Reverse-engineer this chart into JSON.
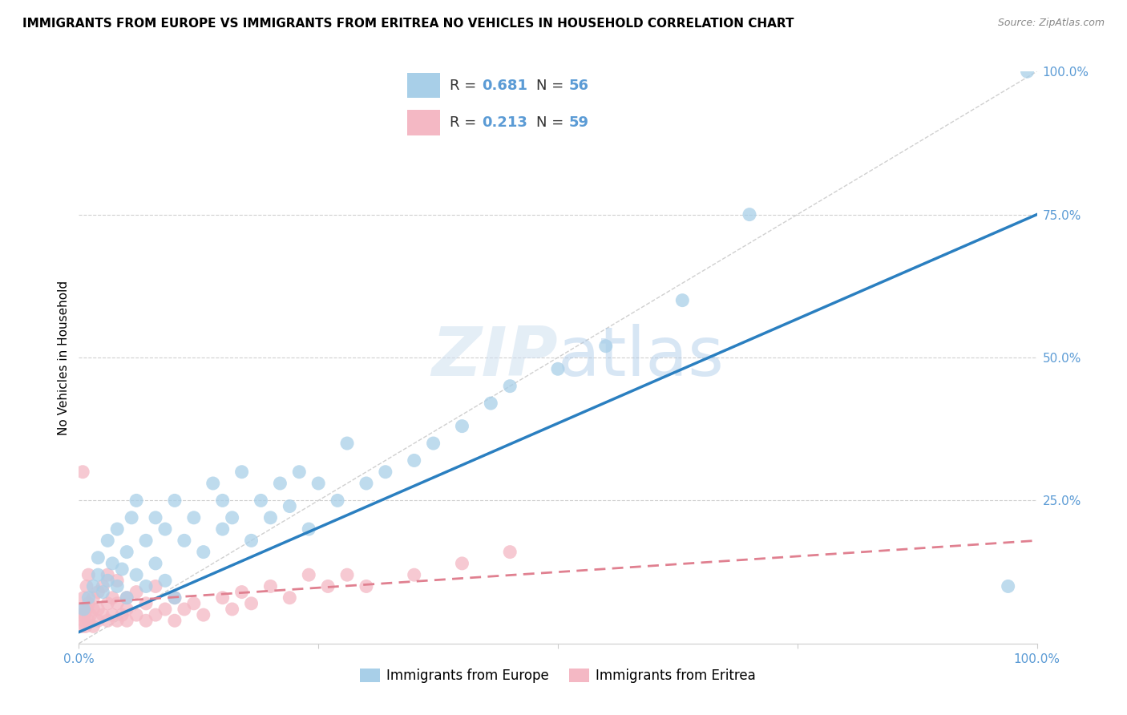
{
  "title": "IMMIGRANTS FROM EUROPE VS IMMIGRANTS FROM ERITREA NO VEHICLES IN HOUSEHOLD CORRELATION CHART",
  "source": "Source: ZipAtlas.com",
  "ylabel": "No Vehicles in Household",
  "blue_R": 0.681,
  "blue_N": 56,
  "pink_R": 0.213,
  "pink_N": 59,
  "blue_color": "#a8cfe8",
  "pink_color": "#f4b8c4",
  "blue_line_color": "#2a7fc0",
  "pink_line_color": "#e08090",
  "legend_blue_label": "Immigrants from Europe",
  "legend_pink_label": "Immigrants from Eritrea",
  "blue_scatter_x": [
    0.5,
    1,
    1.5,
    2,
    2,
    2.5,
    3,
    3,
    3.5,
    4,
    4,
    4.5,
    5,
    5,
    5.5,
    6,
    6,
    7,
    7,
    8,
    8,
    9,
    9,
    10,
    10,
    11,
    12,
    13,
    14,
    15,
    15,
    16,
    17,
    18,
    19,
    20,
    21,
    22,
    23,
    24,
    25,
    27,
    28,
    30,
    32,
    35,
    37,
    40,
    43,
    45,
    50,
    55,
    63,
    70,
    97,
    99
  ],
  "blue_scatter_y": [
    6,
    8,
    10,
    12,
    15,
    9,
    11,
    18,
    14,
    10,
    20,
    13,
    8,
    16,
    22,
    12,
    25,
    10,
    18,
    14,
    22,
    11,
    20,
    8,
    25,
    18,
    22,
    16,
    28,
    20,
    25,
    22,
    30,
    18,
    25,
    22,
    28,
    24,
    30,
    20,
    28,
    25,
    35,
    28,
    30,
    32,
    35,
    38,
    42,
    45,
    48,
    52,
    60,
    75,
    10,
    100
  ],
  "pink_scatter_x": [
    0.2,
    0.3,
    0.4,
    0.5,
    0.5,
    0.6,
    0.7,
    0.8,
    0.8,
    1,
    1,
    1,
    1.2,
    1.5,
    1.5,
    1.5,
    2,
    2,
    2,
    2.5,
    2.5,
    3,
    3,
    3,
    3.5,
    3.5,
    4,
    4,
    4,
    4.5,
    5,
    5,
    5,
    6,
    6,
    7,
    7,
    8,
    8,
    9,
    10,
    10,
    11,
    12,
    13,
    15,
    16,
    17,
    18,
    20,
    22,
    24,
    26,
    28,
    30,
    35,
    40,
    45,
    0.4
  ],
  "pink_scatter_y": [
    5,
    3,
    6,
    4,
    8,
    5,
    3,
    6,
    10,
    4,
    7,
    12,
    5,
    3,
    8,
    6,
    4,
    9,
    6,
    5,
    10,
    4,
    7,
    12,
    5,
    8,
    4,
    7,
    11,
    5,
    4,
    8,
    6,
    5,
    9,
    4,
    7,
    5,
    10,
    6,
    4,
    8,
    6,
    7,
    5,
    8,
    6,
    9,
    7,
    10,
    8,
    12,
    10,
    12,
    10,
    12,
    14,
    16,
    30
  ],
  "background_color": "#ffffff",
  "watermark_text": "ZIPatlas",
  "title_fontsize": 11,
  "axis_label_fontsize": 11,
  "tick_fontsize": 11,
  "legend_fontsize": 12
}
